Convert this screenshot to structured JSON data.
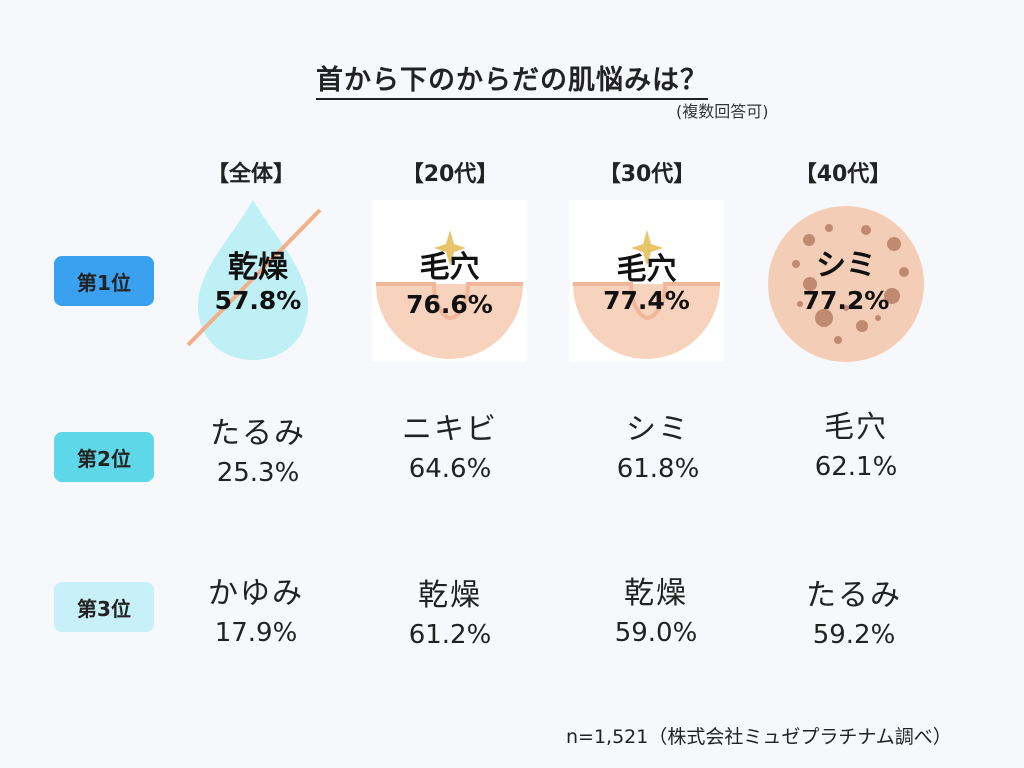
{
  "title": "首から下のからだの肌悩みは？",
  "subtitle": "(複数回答可)",
  "columns": [
    "【全体】",
    "【20代】",
    "【30代】",
    "【40代】"
  ],
  "ranks": [
    {
      "label": "第1位",
      "color": "#3aa0f0"
    },
    {
      "label": "第2位",
      "color": "#5ed8e8"
    },
    {
      "label": "第3位",
      "color": "#c8f0f8"
    }
  ],
  "chart_data": {
    "type": "table",
    "title": "首から下のからだの肌悩みは？",
    "note": "(複数回答可)",
    "unit": "%",
    "columns": [
      "全体",
      "20代",
      "30代",
      "40代"
    ],
    "rows": [
      {
        "rank": "第1位",
        "cells": [
          {
            "label": "乾燥",
            "value": "57.8%"
          },
          {
            "label": "毛穴",
            "value": "76.6%"
          },
          {
            "label": "毛穴",
            "value": "77.4%"
          },
          {
            "label": "シミ",
            "value": "77.2%"
          }
        ]
      },
      {
        "rank": "第2位",
        "cells": [
          {
            "label": "たるみ",
            "value": "25.3%"
          },
          {
            "label": "ニキビ",
            "value": "64.6%"
          },
          {
            "label": "シミ",
            "value": "61.8%"
          },
          {
            "label": "毛穴",
            "value": "62.1%"
          }
        ]
      },
      {
        "rank": "第3位",
        "cells": [
          {
            "label": "かゆみ",
            "value": "17.9%"
          },
          {
            "label": "乾燥",
            "value": "61.2%"
          },
          {
            "label": "乾燥",
            "value": "59.0%"
          },
          {
            "label": "たるみ",
            "value": "59.2%"
          }
        ]
      }
    ]
  },
  "icons": [
    "water-drop-icon",
    "pore-icon",
    "pore-icon",
    "spot-icon"
  ],
  "colors": {
    "drop": "#bff0f6",
    "slash": "#f2b08a",
    "pore_skin": "#f7d3bd",
    "pore_line": "#f0b79a",
    "spark": "#e8c56a",
    "spot_bg": "#f4cdb6",
    "spot": "#c08a70"
  },
  "footnote": "n=1,521（株式会社ミュゼプラチナム調べ）"
}
